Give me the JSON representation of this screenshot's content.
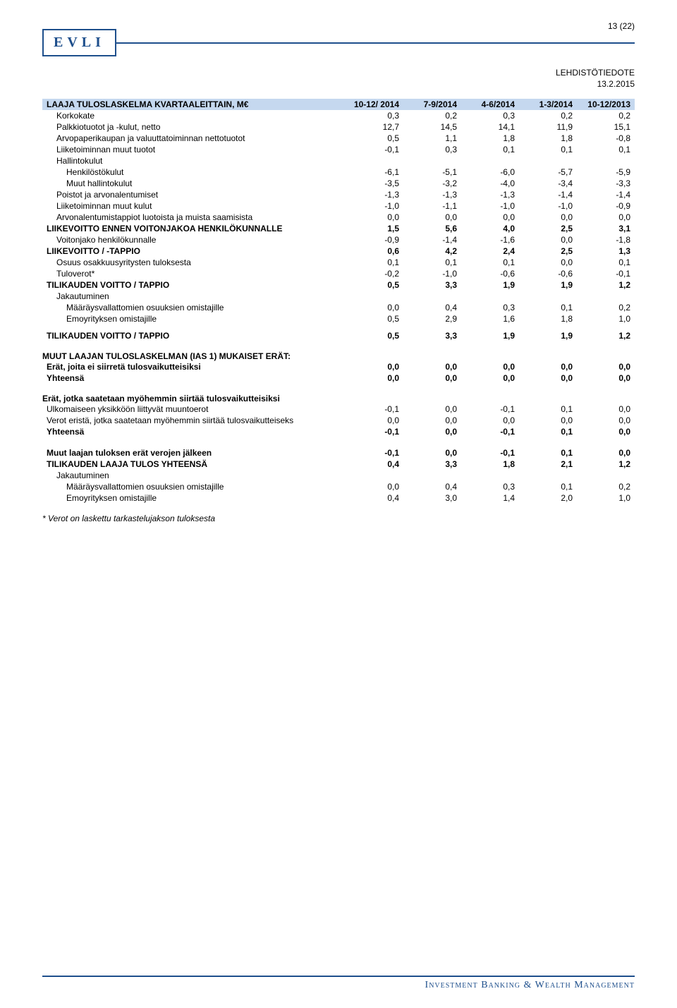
{
  "logo": "EVLI",
  "page_number": "13 (22)",
  "doc_title": "LEHDISTÖTIEDOTE",
  "doc_date": "13.2.2015",
  "footer": "Investment Banking & Wealth Management",
  "table1": {
    "title": "LAAJA TULOSLASKELMA KVARTAALEITTAIN, M€",
    "periods": [
      "10-12/ 2014",
      "7-9/2014",
      "4-6/2014",
      "1-3/2014",
      "10-12/2013"
    ],
    "rows": [
      {
        "label": "Korkokate",
        "vals": [
          "0,3",
          "0,2",
          "0,3",
          "0,2",
          "0,2"
        ],
        "indent": 1
      },
      {
        "label": "Palkkiotuotot ja -kulut, netto",
        "vals": [
          "12,7",
          "14,5",
          "14,1",
          "11,9",
          "15,1"
        ],
        "indent": 1
      },
      {
        "label": "Arvopaperikaupan ja valuuttatoiminnan nettotuotot",
        "vals": [
          "0,5",
          "1,1",
          "1,8",
          "1,8",
          "-0,8"
        ],
        "indent": 1
      },
      {
        "label": "Liiketoiminnan muut tuotot",
        "vals": [
          "-0,1",
          "0,3",
          "0,1",
          "0,1",
          "0,1"
        ],
        "indent": 1
      },
      {
        "label": "Hallintokulut",
        "vals": [
          "",
          "",
          "",
          "",
          ""
        ],
        "indent": 1
      },
      {
        "label": "Henkilöstökulut",
        "vals": [
          "-6,1",
          "-5,1",
          "-6,0",
          "-5,7",
          "-5,9"
        ],
        "indent": 2
      },
      {
        "label": "Muut hallintokulut",
        "vals": [
          "-3,5",
          "-3,2",
          "-4,0",
          "-3,4",
          "-3,3"
        ],
        "indent": 2
      },
      {
        "label": "Poistot ja arvonalentumiset",
        "vals": [
          "-1,3",
          "-1,3",
          "-1,3",
          "-1,4",
          "-1,4"
        ],
        "indent": 1
      },
      {
        "label": "Liiketoiminnan muut kulut",
        "vals": [
          "-1,0",
          "-1,1",
          "-1,0",
          "-1,0",
          "-0,9"
        ],
        "indent": 1
      },
      {
        "label": "Arvonalentumistappiot luotoista ja muista saamisista",
        "vals": [
          "0,0",
          "0,0",
          "0,0",
          "0,0",
          "0,0"
        ],
        "indent": 1
      },
      {
        "label": "LIIKEVOITTO ENNEN VOITONJAKOA HENKILÖKUNNALLE",
        "vals": [
          "1,5",
          "5,6",
          "4,0",
          "2,5",
          "3,1"
        ],
        "bold": true
      },
      {
        "label": "Voitonjako henkilökunnalle",
        "vals": [
          "-0,9",
          "-1,4",
          "-1,6",
          "0,0",
          "-1,8"
        ],
        "indent": 1
      },
      {
        "label": "LIIKEVOITTO / -TAPPIO",
        "vals": [
          "0,6",
          "4,2",
          "2,4",
          "2,5",
          "1,3"
        ],
        "bold": true
      },
      {
        "label": "Osuus osakkuusyritysten tuloksesta",
        "vals": [
          "0,1",
          "0,1",
          "0,1",
          "0,0",
          "0,1"
        ],
        "indent": 1
      },
      {
        "label": "Tuloverot*",
        "vals": [
          "-0,2",
          "-1,0",
          "-0,6",
          "-0,6",
          "-0,1"
        ],
        "indent": 1
      },
      {
        "label": "TILIKAUDEN VOITTO / TAPPIO",
        "vals": [
          "0,5",
          "3,3",
          "1,9",
          "1,9",
          "1,2"
        ],
        "bold": true
      },
      {
        "label": "Jakautuminen",
        "vals": [
          "",
          "",
          "",
          "",
          ""
        ],
        "indent": 1
      },
      {
        "label": "Määräysvallattomien osuuksien omistajille",
        "vals": [
          "0,0",
          "0,4",
          "0,3",
          "0,1",
          "0,2"
        ],
        "indent": 2
      },
      {
        "label": "Emoyrityksen omistajille",
        "vals": [
          "0,5",
          "2,9",
          "1,6",
          "1,8",
          "1,0"
        ],
        "indent": 2
      },
      {
        "label": "",
        "vals": [
          "",
          "",
          "",
          "",
          ""
        ],
        "spacer": true
      },
      {
        "label": "TILIKAUDEN VOITTO / TAPPIO",
        "vals": [
          "0,5",
          "3,3",
          "1,9",
          "1,9",
          "1,2"
        ],
        "bold": true
      }
    ]
  },
  "table2_heading": "MUUT LAAJAN TULOSLASKELMAN (IAS 1) MUKAISET ERÄT:",
  "table2": {
    "rows": [
      {
        "label": "Erät, joita ei siirretä tulosvaikutteisiksi",
        "vals": [
          "0,0",
          "0,0",
          "0,0",
          "0,0",
          "0,0"
        ],
        "bold": true
      },
      {
        "label": "Yhteensä",
        "vals": [
          "0,0",
          "0,0",
          "0,0",
          "0,0",
          "0,0"
        ],
        "bold": true
      }
    ]
  },
  "table3_heading": "Erät, jotka saatetaan myöhemmin siirtää tulosvaikutteisiksi",
  "table3": {
    "rows": [
      {
        "label": "Ulkomaiseen yksikköön liittyvät muuntoerot",
        "vals": [
          "-0,1",
          "0,0",
          "-0,1",
          "0,1",
          "0,0"
        ]
      },
      {
        "label": "Verot eristä, jotka saatetaan myöhemmin siirtää tulosvaikutteiseks",
        "vals": [
          "0,0",
          "0,0",
          "0,0",
          "0,0",
          "0,0"
        ]
      },
      {
        "label": "Yhteensä",
        "vals": [
          "-0,1",
          "0,0",
          "-0,1",
          "0,1",
          "0,0"
        ],
        "bold": true
      }
    ]
  },
  "table4": {
    "rows": [
      {
        "label": "Muut laajan tuloksen erät verojen jälkeen",
        "vals": [
          "-0,1",
          "0,0",
          "-0,1",
          "0,1",
          "0,0"
        ],
        "bold": true
      },
      {
        "label": "TILIKAUDEN LAAJA TULOS YHTEENSÄ",
        "vals": [
          "0,4",
          "3,3",
          "1,8",
          "2,1",
          "1,2"
        ],
        "bold": true
      },
      {
        "label": "Jakautuminen",
        "vals": [
          "",
          "",
          "",
          "",
          ""
        ],
        "indent": 1
      },
      {
        "label": "Määräysvallattomien osuuksien omistajille",
        "vals": [
          "0,0",
          "0,4",
          "0,3",
          "0,1",
          "0,2"
        ],
        "indent": 2
      },
      {
        "label": "Emoyrityksen omistajille",
        "vals": [
          "0,4",
          "3,0",
          "1,4",
          "2,0",
          "1,0"
        ],
        "indent": 2
      }
    ]
  },
  "footnote": "* Verot on laskettu tarkastelujakson tuloksesta"
}
